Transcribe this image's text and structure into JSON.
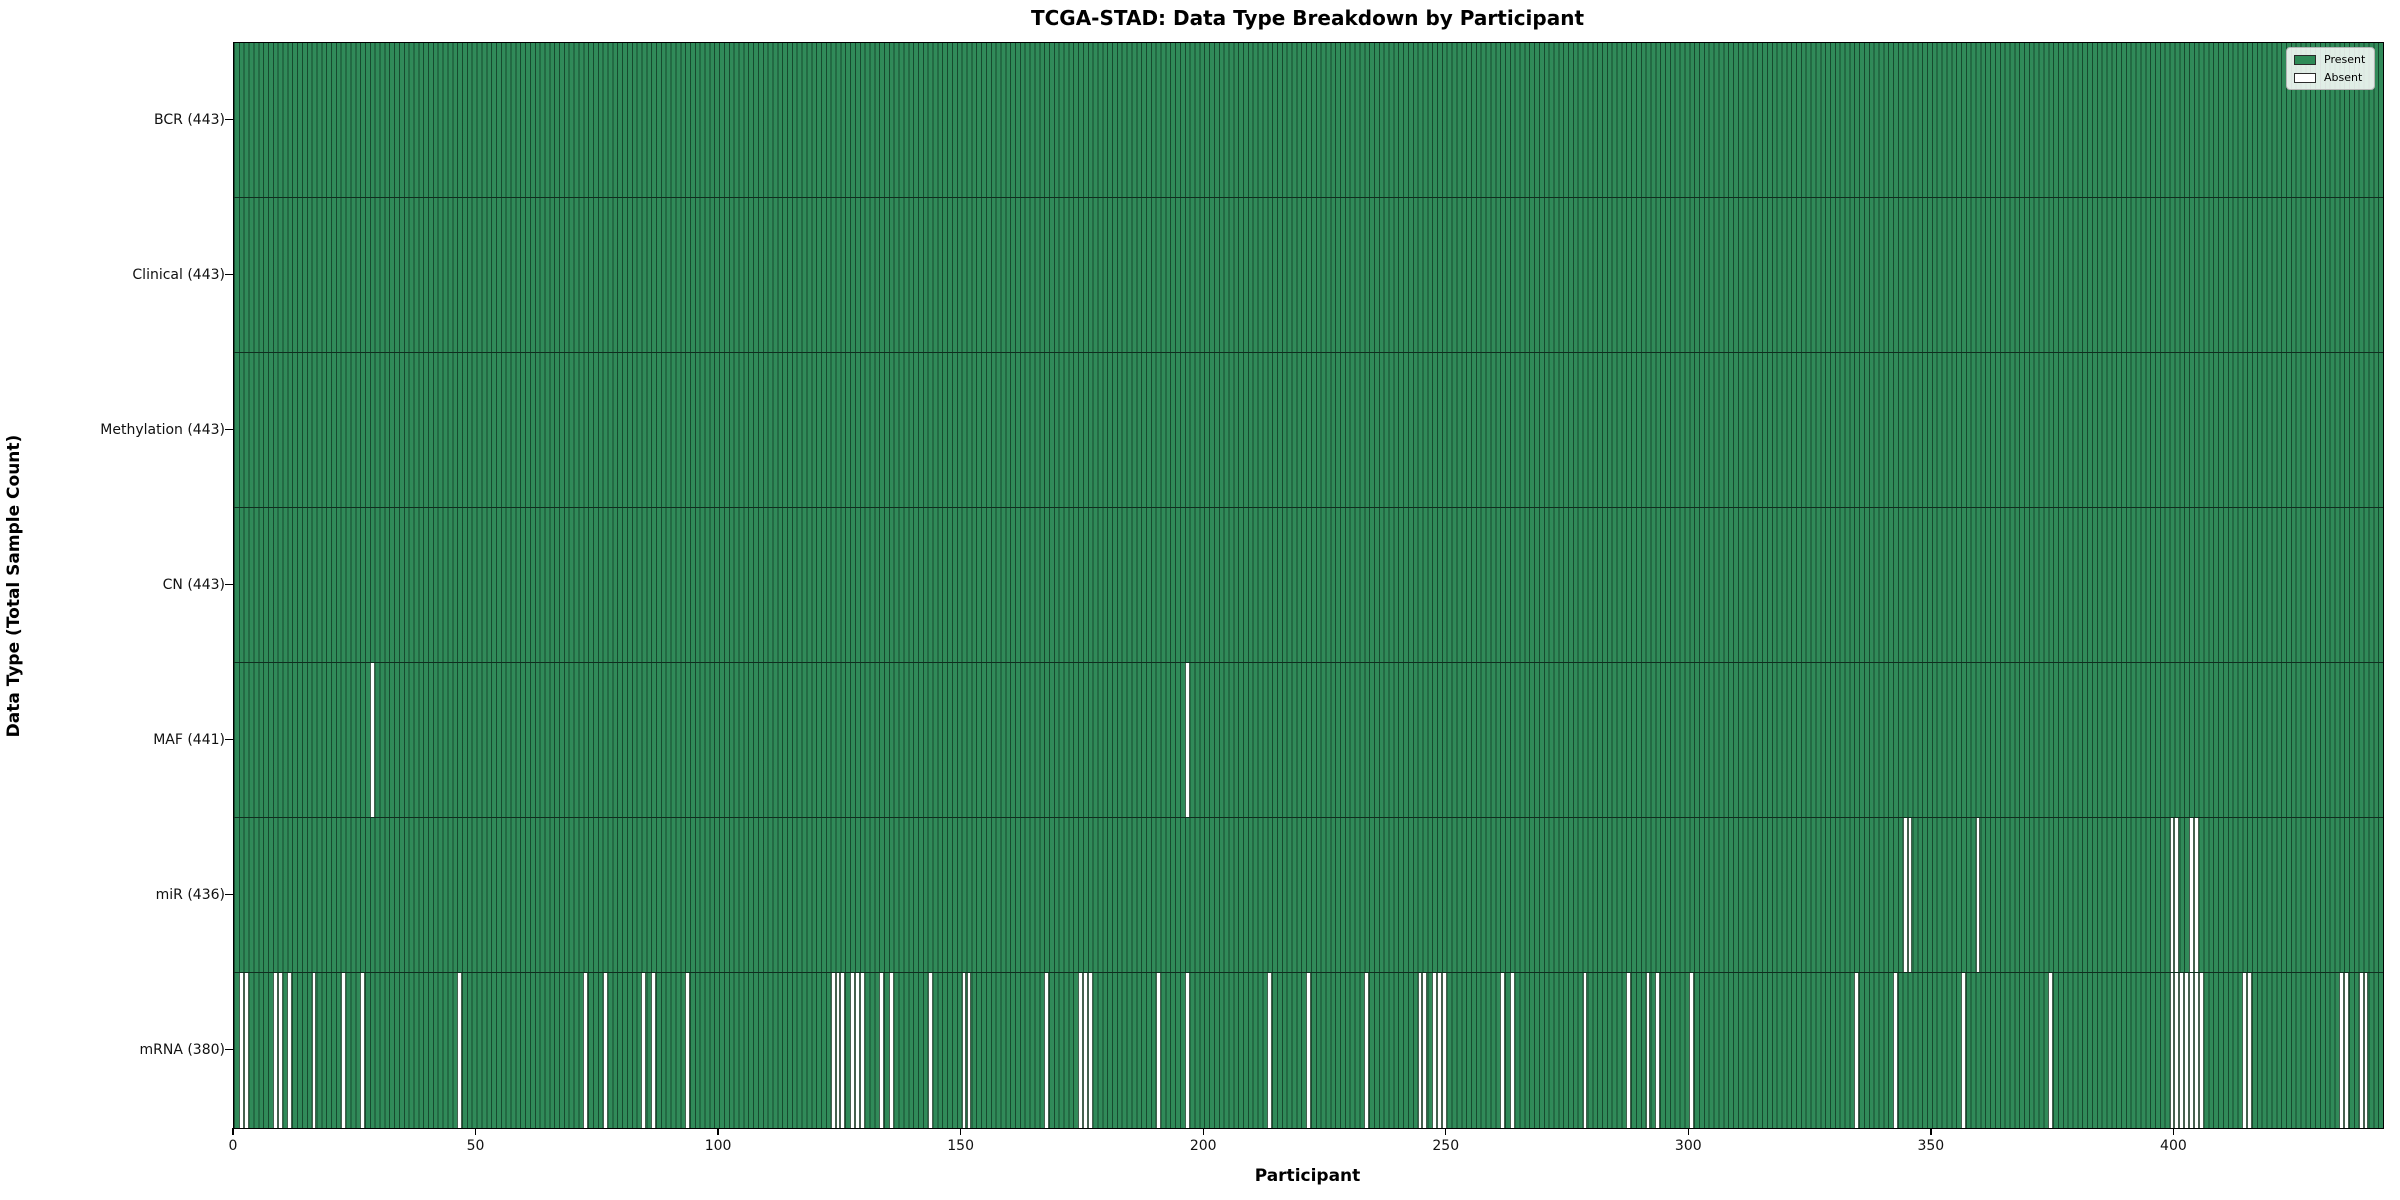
{
  "chart_data": {
    "type": "heatmap",
    "title": "TCGA-STAD: Data Type Breakdown by Participant",
    "xlabel": "Participant",
    "ylabel": "Data Type (Total Sample Count)",
    "n_participants": 443,
    "x_ticks": [
      0,
      50,
      100,
      150,
      200,
      250,
      300,
      350,
      400
    ],
    "present_color": "#2e8b57",
    "absent_color": "#ffffff",
    "legend": [
      {
        "label": "Present",
        "color": "#2e8b57"
      },
      {
        "label": "Absent",
        "color": "#ffffff"
      }
    ],
    "rows": [
      {
        "label": "BCR (443)",
        "data_type": "BCR",
        "present_count": 443,
        "absent_participants": []
      },
      {
        "label": "Clinical (443)",
        "data_type": "Clinical",
        "present_count": 443,
        "absent_participants": []
      },
      {
        "label": "Methylation (443)",
        "data_type": "Methylation",
        "present_count": 443,
        "absent_participants": []
      },
      {
        "label": "CN (443)",
        "data_type": "CN",
        "present_count": 443,
        "absent_participants": []
      },
      {
        "label": "MAF (441)",
        "data_type": "MAF",
        "present_count": 441,
        "absent_participants": [
          28,
          196
        ]
      },
      {
        "label": "miR (436)",
        "data_type": "miR",
        "present_count": 436,
        "absent_participants": [
          344,
          345,
          359,
          399,
          400,
          403,
          404
        ]
      },
      {
        "label": "mRNA (380)",
        "data_type": "mRNA",
        "present_count": 380,
        "absent_participants": [
          1,
          2,
          8,
          9,
          11,
          16,
          22,
          26,
          46,
          72,
          76,
          84,
          86,
          93,
          123,
          124,
          125,
          127,
          128,
          129,
          133,
          135,
          143,
          150,
          151,
          167,
          174,
          175,
          176,
          190,
          196,
          213,
          221,
          233,
          244,
          245,
          247,
          248,
          249,
          261,
          263,
          278,
          287,
          291,
          293,
          300,
          334,
          342,
          356,
          374,
          399,
          400,
          401,
          402,
          403,
          404,
          405,
          414,
          415,
          434,
          435,
          438,
          439
        ]
      }
    ]
  }
}
